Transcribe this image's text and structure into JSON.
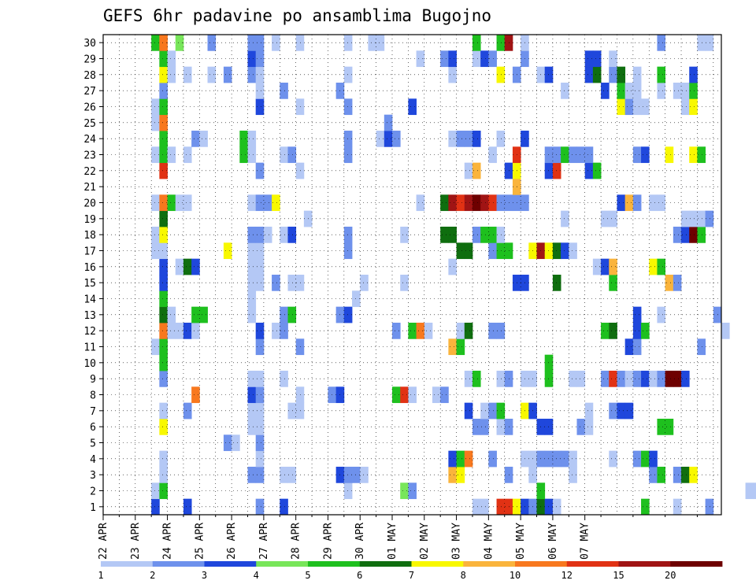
{
  "chart_data": {
    "type": "heatmap",
    "title": "GEFS 6hr padavine po ansamblima Bugojno",
    "y_labels": [
      "1",
      "2",
      "3",
      "4",
      "5",
      "6",
      "7",
      "8",
      "9",
      "10",
      "11",
      "12",
      "13",
      "14",
      "15",
      "16",
      "17",
      "18",
      "19",
      "20",
      "21",
      "22",
      "23",
      "24",
      "25",
      "26",
      "27",
      "28",
      "29",
      "30"
    ],
    "x_labels": [
      "22 APR",
      "23 APR",
      "24 APR",
      "25 APR",
      "26 APR",
      "27 APR",
      "28 APR",
      "29 APR",
      "30 APR",
      "01 MAY",
      "02 MAY",
      "03 MAY",
      "04 MAY",
      "05 MAY",
      "06 MAY",
      "07 MAY"
    ],
    "colorbar": {
      "labels": [
        "1",
        "2",
        "3",
        "4",
        "5",
        "6",
        "7",
        "8",
        "10",
        "12",
        "15",
        "20"
      ],
      "colors": [
        "#b4c8f5",
        "#6e91ec",
        "#1f47dc",
        "#78e65a",
        "#1ec01e",
        "#0f6e0f",
        "#f8f800",
        "#fab43c",
        "#f8781e",
        "#e13214",
        "#a01414",
        "#6e0000"
      ]
    },
    "grid": "dotted",
    "cell_rows": {
      "1": ". . . . . . 3 . . . 3 . . . . . . . . 2 . . 3 . . . . . . . . . . . . . . . . . . . . . . . 1 1 . 12 12 7 3 2 6 3 1 . . . . . . . . . . 5 . . . 1 . . . 2",
      "2": ". . . . . . 1 5 . . . . . . . . . . . . . . . . . . . . . . 1 . . . . . . 4 2 . . . . . . . . . . . . . . . 5 . . . . . . . . . . . . . . . . . . . . . . . . . 1 1",
      "3": ". . . . . . . 1 . . . . . . . . . . 2 2 . . 1 1 . . . . . 3 2 2 1 . . . . . . . . . . 8 7 . . . . . 2 . . 1 . . . . 1 . . . . . . . . . 2 5 . 2 6 7",
      "4": ". . . . . . . 1 . . . . . . . . . . . 1 . . . . . . . . . . . . . . . . . . . . . . . 3 5 10 . . 2 . . . 1 1 2 2 2 2 1 . . . . 1 . . 2 5 3",
      "5": ". . . . . . . . . . . . . . . 2 1 . . 2 . . . . . . . . . . . . . . . . . . . . . . . . . . . . . . . . . . . . . . . . . . . . . . . . . . . . . . . . .",
      "6": ". . . . . . . 7 . . . . . . . . . . 1 1 . . . . . . . . . . . . . . . . . . . . . . . . . . 2 2 . 1 2 . . . 3 3 . . . 2 1 . . . . . . . . 5 5",
      "7": ". . . . . . . 1 . . 2 . . . . . . . 1 1 . . . 1 1 . . . . . . . . . . . . . . . . . . . . 3 . 1 2 5 . . 7 3 . . . . . . 1 . . 2 3 3 . . . . . . . .",
      "8": ". . . . . . . . . . . 10 . . . . . . 3 2 . . . . 1 . . . 2 3 . . . . . . 5 12 1 . . 1 2 . . . . . . . . . . . . . . . . . . . . . . . . . . . . . . . .",
      "9": ". . . . . . . 2 . . . . . . . . . . 1 1 . . 1 . . . . . . . . . . . . . . . . . . . . . . 1 5 . . 1 2 . 1 1 . 5 . . 1 1 . . 2 12 2 1 2 3 1 2 20 20 3",
      "10": ". . . . . . . 5 . . . . . . . . . . . . . . . . . . . . . . . . . . . . . . . . . . . . . . . . . . . . . . . 5 . . . . . . . . . . . . . . . . . . . .",
      "11": ". . . . . . 1 5 . . . . . . . . . . . 2 . . . . 2 . . . . . . . . . . . . . . . . . . 8 5 . . . . . . . . . . . . . . . . . . . . 3 2 . . . . . . . 2",
      "12": ". . . . . . . 10 1 1 3 1 . . . . . . . 3 . 1 2 . . . . . . . . . . . . . 2 . 5 10 1 . . . 1 6 . . 2 2 . . . . . . . . . . . . 5 6 . . 3 5 . . . . . . . . . 1",
      "13": ". . . . . . . 6 1 . . 5 5 . . . . . 1 . . . 2 5 . . . . . 2 3 . . . . . . . . . . . . . . . . . . . . . . . . . . . . . . . . . . . 3 . . 1 . . . . . . 2",
      "14": ". . . . . . . 5 . . . . . . . . . . 1 . . . . . . . . . . . . 1 . . . . . . . . . . . . . . . . . . . . . . . . . . . . . . . . . . . . . . . . . . . . .",
      "15": ". . . . . . . 3 . . . . . . . . . . 1 1 . 2 . 1 1 . . . . . . . 1 . . . . 1 . . . . . . . . . . . . . 3 3 . . . 6 . . . . . . 5 . . . . . . 8 2 . . .",
      "16": ". . . . . . . 3 . 1 6 3 . . . . . . 1 1 . . . . . . . . . . . . . . . . . . . . . . . 1 . . . . . . . . . . . . . . . . . 1 3 8 . . . . 7 5 . . . .",
      "17": ". . . . . . 1 1 . . . . . . . 7 . . 1 1 . . . . . . . . . . 2 . . . . . . . . . . . . . 6 6 . . 2 5 5 . . 7 15 7 6 3 1 . . . . . . . . . . . . . . . . . . .",
      "18": ". . . . . . 1 7 . . . . . . . . . . 2 2 1 . 1 3 . . . . . . 2 . . . . . . 1 . . . . 6 6 . . 2 5 5 1 . . . . . . . . . . . . . . . . . . . . . 2 3 20 5",
      "19": ". . . . . . . 6 . . . . . . . . . . . . . . . . . 1 . . . . . . . . . . . . . . . . . . . . . . . . . . . . . . . 1 . . . . 1 1 . . . . . . . . 1 1 1 2",
      "20": ". . . . . . 1 10 5 1 1 . . . . . . . 1 2 2 7 . . . . . . . . . . . . . . . . . 1 . . 6 15 12 15 20 15 12 2 2 2 2 . . . . . . . . . . . 3 8 2 . 1 1 . . .",
      "21": ". . . . . . . . . . . . . . . . . . . . . . . . . . . . . . . . . . . . . . . . . . . . . . . . . . . 8 . . . . . . . . . . . . . . . . . . . . . . . .",
      "22": ". . . . . . . 12 . . . . . . . . . . . 2 . . . . 1 . . . . . . . . . . . . . . . . . . . . 1 8 . . . 3 7 . . . 3 12 . . . 3 5 . . . . . . . . . .",
      "23": ". . . . . . 1 5 1 . 1 . . . . . . 5 1 . . . 1 2 . . . . . . 2 . . . . . . . . . . . . . . . . . 1 . . 12 . . . 2 2 5 2 2 2 . . . . . 2 3 . . 7 . . 7 5",
      "24": ". . . . . . . 5 . . . 2 1 . . . . 5 1 . . . . . . . . . . . 2 . . . 1 3 2 . . . . . . 1 2 2 3 . . 1 . . 3 . . . . . . . . . . . . . . . . . . . . . . .",
      "25": ". . . . . . 1 10 . . . . . . . . . . . . . . . . . . . . . . . . . . . 2 . . . . . . . . . . . . . . . . . . . . . . . . . . . . . . . . . . . . . . . .",
      "26": ". . . . . . 1 5 . . . . . . . . . . . 3 . . . . 1 . . . . . 2 . . . . . . . 3 . . . . . . . . . . . . . . . . . . . . . . . . . 7 2 1 1 . . . . 1 7",
      "27": ". . . . . . . 2 . . . . . . . . . . . 1 . . 2 . . . . . . 2 . . . . . . . . . . . . . . . . . . . . . . . . . . . 1 . . . . 3 . 5 1 1 . . 1 . 1 1 5",
      "28": ". . . . . . . 7 1 . 1 . . 1 . 2 . . 2 1 . . . . . . . . . . 1 . . . . . . . . . . . . 1 . . . . . 7 . 2 . . 1 3 . . . . 3 6 . 2 6 . 1 . . 5 . . . 3",
      "29": ". . . . . . . 5 1 . . . . . . . . . 3 2 . . . . . . . . . . . . . . . . . . . 1 . . 2 3 . . 1 3 2 . . . 2 . . . . . . . 3 3 . 1 . . . . . . . . . .",
      "30": ". . . . . . 5 10 . 4 . . . 2 . . . . 2 2 . 1 . . 1 . . . . . 1 . . 1 1 . . . . . . . . . . . 5 . . 5 15 . 1 . . . . . . . . . . . . . . . . 2 . . . . 1 1"
    }
  }
}
